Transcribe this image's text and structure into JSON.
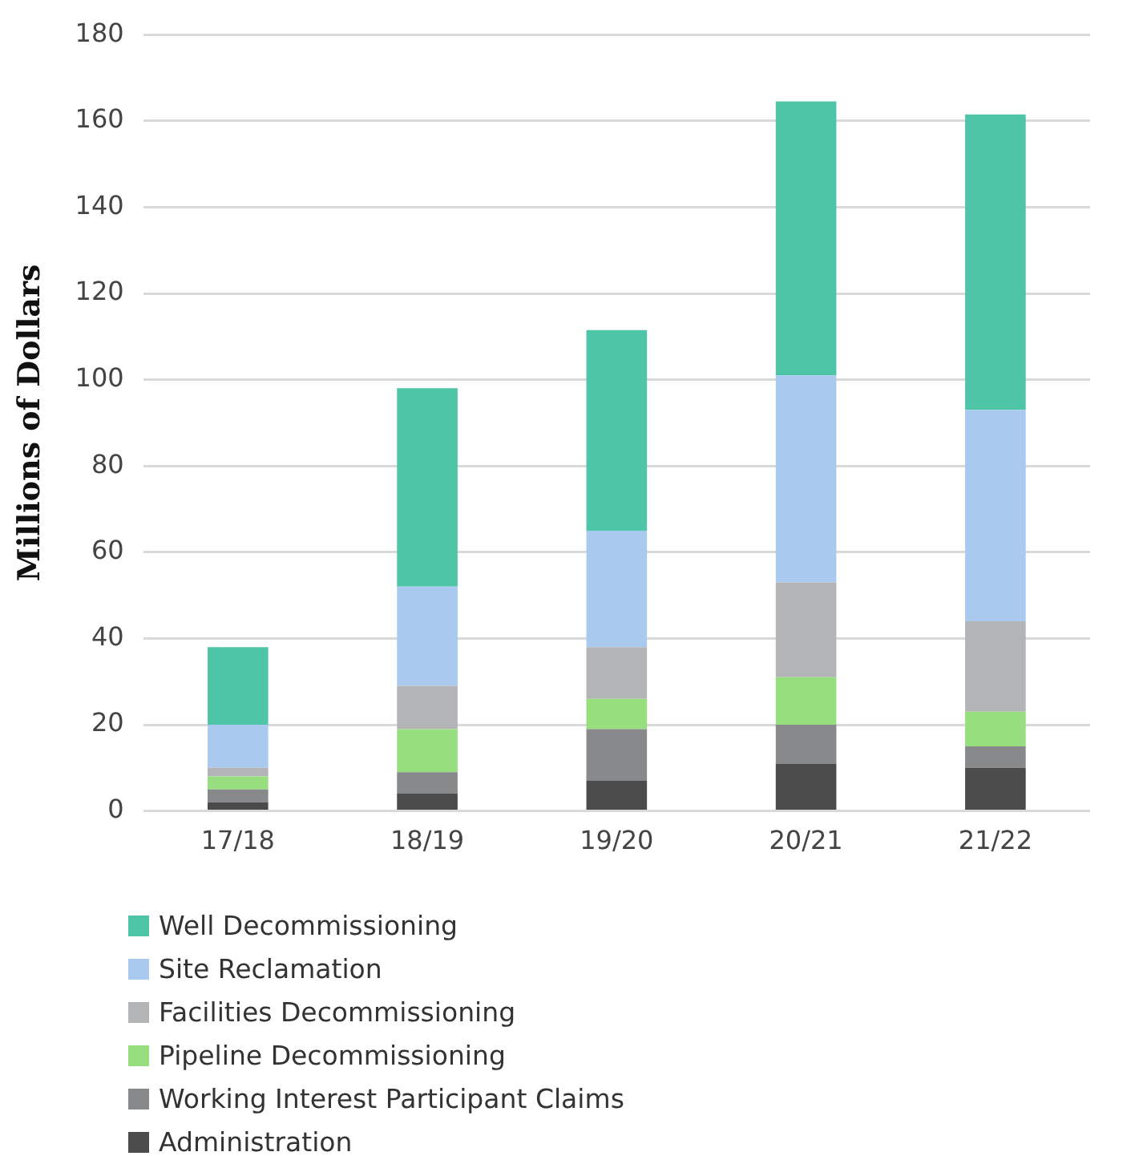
{
  "chart_data": {
    "type": "bar",
    "stacked": true,
    "ylabel": "Millions of Dollars",
    "categories": [
      "17/18",
      "18/19",
      "19/20",
      "20/21",
      "21/22"
    ],
    "series": [
      {
        "name": "Administration",
        "color": "#4b4b4b",
        "values": [
          2,
          4,
          7,
          11,
          10
        ]
      },
      {
        "name": "Working Interest Participant Claims",
        "color": "#88898a",
        "values": [
          3,
          5,
          12,
          9,
          5
        ]
      },
      {
        "name": "Pipeline Decommissioning",
        "color": "#97df7e",
        "values": [
          3,
          10,
          7,
          11,
          8
        ]
      },
      {
        "name": "Facilities Decommissioning",
        "color": "#b3b4b5",
        "values": [
          2,
          10,
          12,
          22,
          21
        ]
      },
      {
        "name": "Site Reclamation",
        "color": "#a9caee",
        "values": [
          10,
          23,
          27,
          48,
          49
        ]
      },
      {
        "name": "Well Decommissioning",
        "color": "#4fc5a8",
        "values": [
          18,
          46,
          46.5,
          63.5,
          68.5
        ]
      }
    ],
    "ylim": [
      0,
      180
    ],
    "yticks": [
      0,
      20,
      40,
      60,
      80,
      100,
      120,
      140,
      160,
      180
    ],
    "grid": "y",
    "legend": "bottom"
  }
}
